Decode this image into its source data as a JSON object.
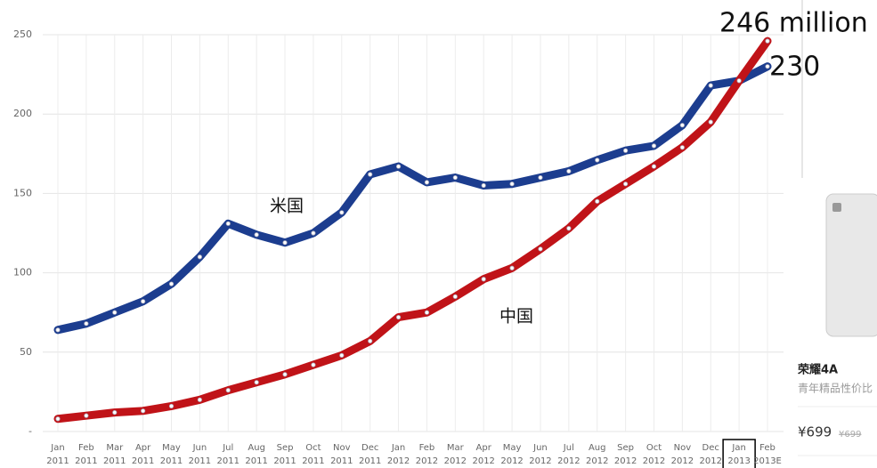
{
  "chart_data": {
    "type": "line",
    "categories": [
      "Jan 2011",
      "Feb 2011",
      "Mar 2011",
      "Apr 2011",
      "May 2011",
      "Jun 2011",
      "Jul 2011",
      "Aug 2011",
      "Sep 2011",
      "Oct 2011",
      "Nov 2011",
      "Dec 2011",
      "Jan 2012",
      "Feb 2012",
      "Mar 2012",
      "Apr 2012",
      "May 2012",
      "Jun 2012",
      "Jul 2012",
      "Aug 2012",
      "Sep 2012",
      "Oct 2012",
      "Nov 2012",
      "Dec 2012",
      "Jan 2013",
      "Feb 2013E"
    ],
    "series": [
      {
        "name": "米国",
        "color": "#1c3d8f",
        "values": [
          64,
          68,
          75,
          82,
          93,
          110,
          131,
          124,
          119,
          125,
          138,
          162,
          167,
          157,
          160,
          155,
          156,
          160,
          164,
          171,
          177,
          180,
          193,
          218,
          221,
          230
        ]
      },
      {
        "name": "中国",
        "color": "#c01318",
        "values": [
          8,
          10,
          12,
          13,
          16,
          20,
          26,
          31,
          36,
          42,
          48,
          57,
          72,
          75,
          85,
          96,
          103,
          115,
          128,
          145,
          156,
          167,
          179,
          195,
          221,
          246
        ]
      }
    ],
    "annotations": [
      "246 million",
      "230"
    ],
    "ylim": [
      0,
      250
    ],
    "yticks": [
      {
        "value": 0,
        "label": "-"
      },
      50,
      100,
      150,
      200,
      250
    ],
    "grid": true
  },
  "sidebar": {
    "product": "荣耀4A",
    "tagline": "青年精品性价比",
    "price": "¥699",
    "old_price": "¥699"
  }
}
